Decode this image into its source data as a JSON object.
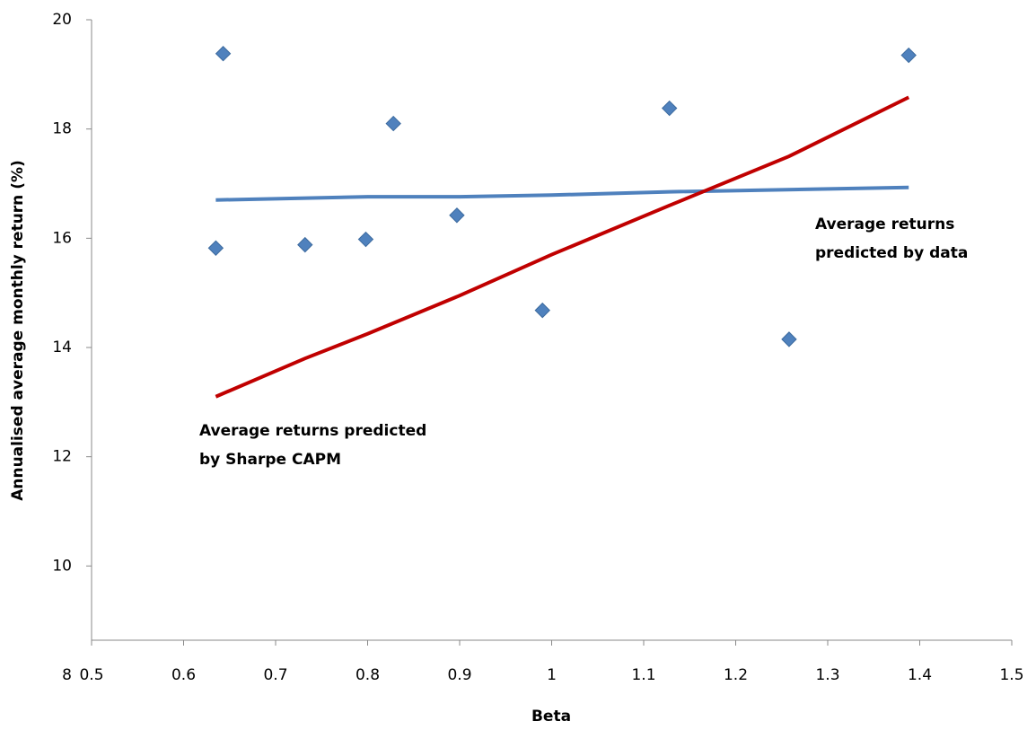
{
  "chart_data": {
    "type": "scatter",
    "x_label": "Beta",
    "y_label": "Annualised average monthly return (%)",
    "xlim": [
      0.5,
      1.5
    ],
    "xticks": [
      0.5,
      0.6,
      0.7,
      0.8,
      0.9,
      1,
      1.1,
      1.2,
      1.3,
      1.4,
      1.5
    ],
    "ylim": [
      8,
      20
    ],
    "yticks": [
      8,
      10,
      12,
      14,
      16,
      18,
      20
    ],
    "grid": false,
    "series": [
      {
        "kind": "points",
        "color": "#4f81bd",
        "x": [
          0.635,
          0.643,
          0.732,
          0.798,
          0.828,
          0.897,
          0.99,
          1.128,
          1.258,
          1.388
        ],
        "values": [
          15.82,
          19.38,
          15.88,
          15.98,
          18.1,
          16.42,
          14.68,
          18.38,
          14.15,
          19.35
        ]
      },
      {
        "kind": "line",
        "color": "#4f81bd",
        "x": [
          0.635,
          0.8,
          0.9,
          1.0,
          1.128,
          1.388
        ],
        "values": [
          16.7,
          16.76,
          16.76,
          16.79,
          16.85,
          16.93
        ]
      },
      {
        "kind": "line",
        "color": "#c00000",
        "x": [
          0.635,
          0.732,
          0.8,
          0.9,
          1.0,
          1.128,
          1.258,
          1.388
        ],
        "values": [
          13.1,
          13.8,
          14.25,
          14.95,
          15.7,
          16.6,
          17.5,
          18.58
        ]
      }
    ],
    "annotations": [
      [
        "Average returns",
        "predicted by data"
      ],
      [
        "Average returns predicted",
        "by Sharpe  CAPM"
      ]
    ]
  }
}
